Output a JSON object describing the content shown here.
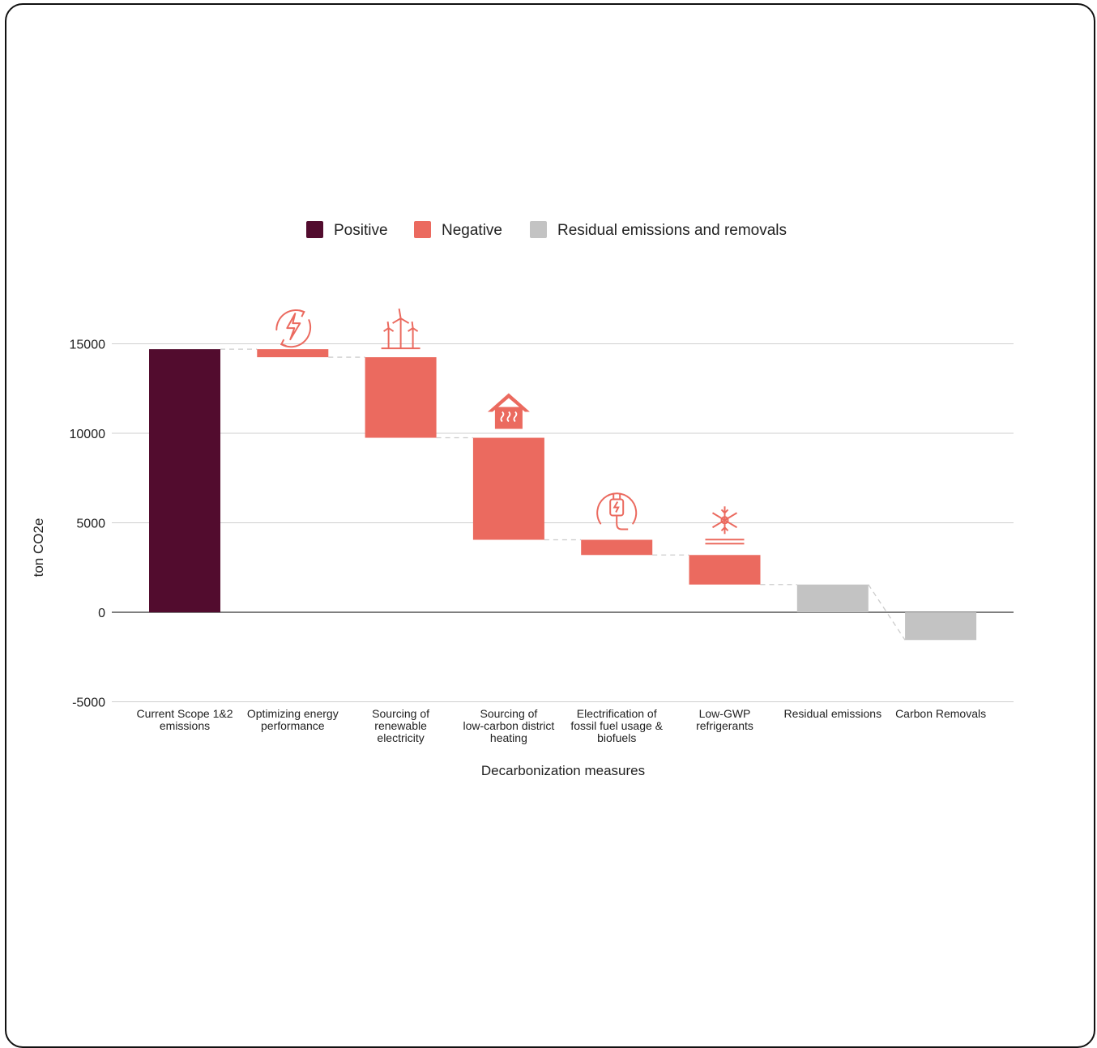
{
  "chart_data": {
    "type": "waterfall",
    "legend": [
      {
        "label": "Positive",
        "color": "#520C2E"
      },
      {
        "label": "Negative",
        "color": "#EB6A5F"
      },
      {
        "label": "Residual emissions and removals",
        "color": "#C3C3C3"
      }
    ],
    "legend_position": "top",
    "ylabel": "ton CO2e",
    "xlabel": "Decarbonization measures",
    "ylim": [
      -5000,
      17500
    ],
    "yticks": [
      15000,
      10000,
      5000,
      0,
      -5000
    ],
    "grid": true,
    "categories": [
      {
        "label": [
          "Current Scope 1&2",
          "emissions"
        ],
        "kind": "Positive",
        "start": 0,
        "end": 14700
      },
      {
        "label": [
          "Optimizing energy",
          "performance"
        ],
        "kind": "Negative",
        "start": 14700,
        "end": 14250,
        "icon": "energy-cycle-icon"
      },
      {
        "label": [
          "Sourcing of",
          "renewable",
          "electricity"
        ],
        "kind": "Negative",
        "start": 14250,
        "end": 9750,
        "icon": "wind-turbine-icon"
      },
      {
        "label": [
          "Sourcing of",
          "low-carbon district",
          "heating"
        ],
        "kind": "Negative",
        "start": 9750,
        "end": 4050,
        "icon": "heated-house-icon"
      },
      {
        "label": [
          "Electrification of",
          "fossil fuel usage &",
          "biofuels"
        ],
        "kind": "Negative",
        "start": 4050,
        "end": 3200,
        "icon": "electric-plug-icon"
      },
      {
        "label": [
          "Low-GWP",
          "refrigerants"
        ],
        "kind": "Negative",
        "start": 3200,
        "end": 1550,
        "icon": "snowflake-icon"
      },
      {
        "label": [
          "Residual emissions"
        ],
        "kind": "Residual",
        "start": 0,
        "end": 1550
      },
      {
        "label": [
          "Carbon Removals"
        ],
        "kind": "Residual",
        "start": 0,
        "end": -1550
      }
    ]
  }
}
